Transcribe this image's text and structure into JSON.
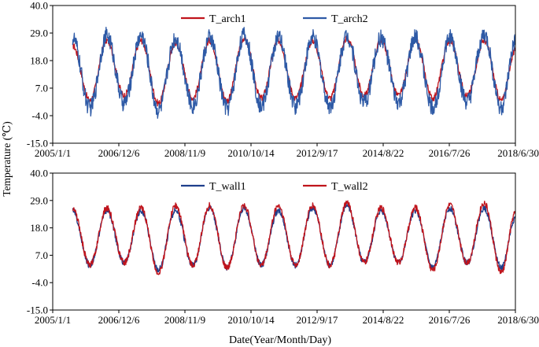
{
  "figure": {
    "ylabel": "Temperature (℃)",
    "xlabel": "Date(Year/Month/Day)"
  },
  "chart_data": [
    {
      "type": "line",
      "x_ticks": [
        "2005/1/1",
        "2006/12/6",
        "2008/11/9",
        "2010/10/14",
        "2012/9/17",
        "2014/8/22",
        "2016/7/26",
        "2018/6/30"
      ],
      "xlim": [
        "2005/1/1",
        "2018/6/30"
      ],
      "ylim": [
        -15.0,
        40.0
      ],
      "y_ticks": [
        "-15.0",
        "-4.0",
        "7.0",
        "18.0",
        "29.0",
        "40.0"
      ],
      "grid": false,
      "legend_position": "top",
      "series": [
        {
          "name": "T_arch1",
          "color": "#c0141c",
          "x": [
            "2005/8/1",
            "2006/2/1",
            "2006/8/1",
            "2007/2/1",
            "2007/8/1",
            "2008/2/1",
            "2008/8/1",
            "2009/2/1",
            "2009/8/1",
            "2010/2/1",
            "2010/8/1",
            "2011/2/1",
            "2011/8/1",
            "2012/2/1",
            "2012/8/1",
            "2013/2/1",
            "2013/8/1",
            "2014/2/1",
            "2014/8/1",
            "2015/2/1",
            "2015/8/1",
            "2016/2/1",
            "2016/8/1",
            "2017/2/1",
            "2017/8/1",
            "2018/2/1",
            "2018/6/30"
          ],
          "y": [
            24,
            2,
            26,
            4,
            26,
            1,
            25,
            3,
            26,
            2,
            27,
            3,
            26,
            3,
            26,
            3,
            27,
            4,
            26,
            4,
            26,
            3,
            26,
            4,
            26,
            2,
            22
          ]
        },
        {
          "name": "T_arch2",
          "color": "#2e5aa6",
          "x": [
            "2005/8/1",
            "2006/2/1",
            "2006/8/1",
            "2007/2/1",
            "2007/8/1",
            "2008/2/1",
            "2008/8/1",
            "2009/2/1",
            "2009/8/1",
            "2010/2/1",
            "2010/8/1",
            "2011/2/1",
            "2011/8/1",
            "2012/2/1",
            "2012/8/1",
            "2013/2/1",
            "2013/8/1",
            "2014/2/1",
            "2014/8/1",
            "2015/2/1",
            "2015/8/1",
            "2016/2/1",
            "2016/8/1",
            "2017/2/1",
            "2017/8/1",
            "2018/2/1",
            "2018/6/30"
          ],
          "y": [
            27,
            -1,
            28,
            1,
            28,
            -2,
            27,
            0,
            27,
            -1,
            28,
            0,
            27,
            0,
            27,
            0,
            28,
            1,
            27,
            1,
            27,
            -1,
            27,
            1,
            28,
            -1,
            25
          ]
        }
      ]
    },
    {
      "type": "line",
      "x_ticks": [
        "2005/1/1",
        "2006/12/6",
        "2008/11/9",
        "2010/10/14",
        "2012/9/17",
        "2014/8/22",
        "2016/7/26",
        "2018/6/30"
      ],
      "xlim": [
        "2005/1/1",
        "2018/6/30"
      ],
      "ylim": [
        -15.0,
        40.0
      ],
      "y_ticks": [
        "-15.0",
        "-4.0",
        "7.0",
        "18.0",
        "29.0",
        "40.0"
      ],
      "grid": false,
      "legend_position": "top",
      "series": [
        {
          "name": "T_wall1",
          "color": "#1f3f8c",
          "x": [
            "2005/8/1",
            "2006/2/1",
            "2006/8/1",
            "2007/2/1",
            "2007/8/1",
            "2008/2/1",
            "2008/8/1",
            "2009/2/1",
            "2009/8/1",
            "2010/2/1",
            "2010/8/1",
            "2011/2/1",
            "2011/8/1",
            "2012/2/1",
            "2012/8/1",
            "2013/2/1",
            "2013/8/1",
            "2014/2/1",
            "2014/8/1",
            "2015/2/1",
            "2015/8/1",
            "2016/2/1",
            "2016/8/1",
            "2017/2/1",
            "2017/8/1",
            "2018/2/1",
            "2018/6/30"
          ],
          "y": [
            25,
            3,
            25,
            4,
            25,
            1,
            25,
            3,
            26,
            2,
            26,
            3,
            25,
            3,
            26,
            3,
            27,
            4,
            25,
            4,
            25,
            2,
            26,
            4,
            26,
            2,
            22
          ]
        },
        {
          "name": "T_wall2",
          "color": "#c0141c",
          "x": [
            "2005/8/1",
            "2006/2/1",
            "2006/8/1",
            "2007/2/1",
            "2007/8/1",
            "2008/2/1",
            "2008/8/1",
            "2009/2/1",
            "2009/8/1",
            "2010/2/1",
            "2010/8/1",
            "2011/2/1",
            "2011/8/1",
            "2012/2/1",
            "2012/8/1",
            "2013/2/1",
            "2013/8/1",
            "2014/2/1",
            "2014/8/1",
            "2015/2/1",
            "2015/8/1",
            "2016/2/1",
            "2016/8/1",
            "2017/2/1",
            "2017/8/1",
            "2018/2/1",
            "2018/6/30"
          ],
          "y": [
            26,
            3,
            26,
            4,
            26,
            0,
            27,
            3,
            27,
            2,
            27,
            3,
            27,
            3,
            27,
            3,
            28,
            4,
            26,
            4,
            26,
            1,
            27,
            4,
            28,
            0,
            24
          ]
        }
      ]
    }
  ]
}
